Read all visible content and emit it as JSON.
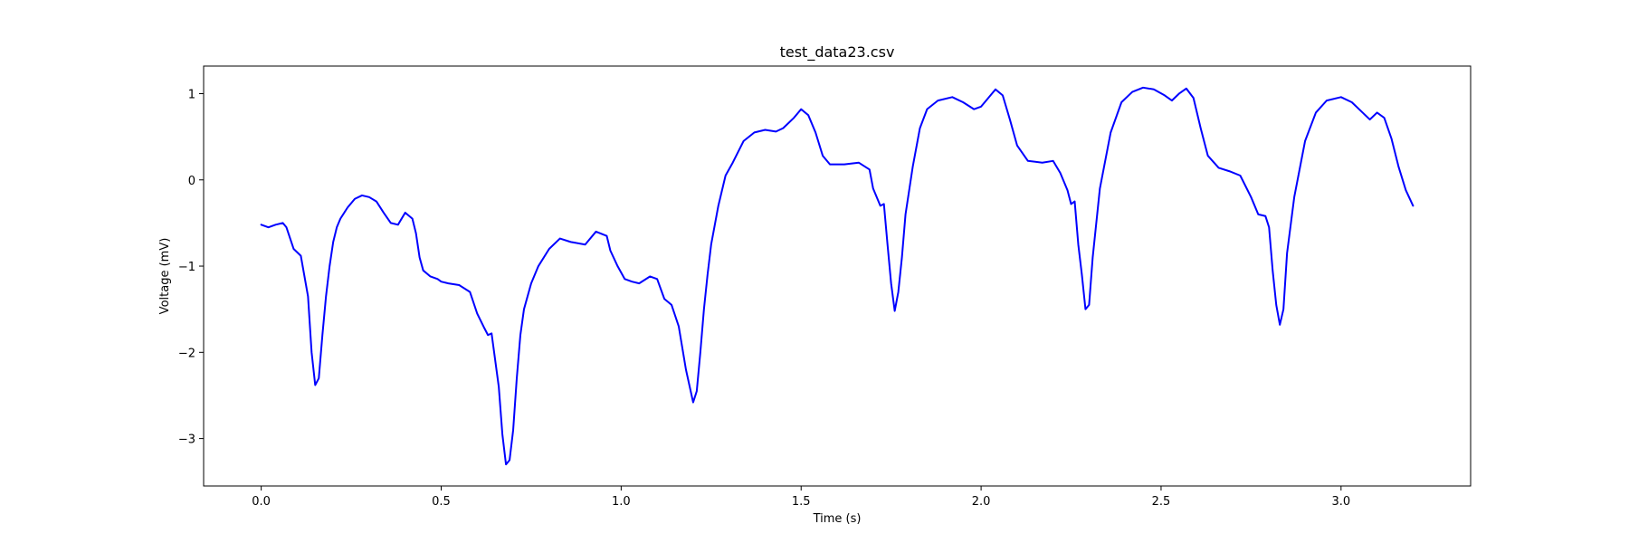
{
  "chart_data": {
    "type": "line",
    "title": "test_data23.csv",
    "xlabel": "Time (s)",
    "ylabel": "Voltage (mV)",
    "xlim": [
      -0.16,
      3.36
    ],
    "ylim": [
      -3.55,
      1.32
    ],
    "xticks": [
      0.0,
      0.5,
      1.0,
      1.5,
      2.0,
      2.5,
      3.0
    ],
    "xtick_labels": [
      "0.0",
      "0.5",
      "1.0",
      "1.5",
      "2.0",
      "2.5",
      "3.0"
    ],
    "yticks": [
      -3,
      -2,
      -1,
      0,
      1
    ],
    "ytick_labels": [
      "−3",
      "−2",
      "−1",
      "0",
      "1"
    ],
    "grid": false,
    "series": [
      {
        "color": "#0000ff",
        "x": [
          0.0,
          0.02,
          0.04,
          0.06,
          0.07,
          0.09,
          0.11,
          0.13,
          0.14,
          0.15,
          0.16,
          0.17,
          0.18,
          0.19,
          0.2,
          0.21,
          0.22,
          0.24,
          0.26,
          0.28,
          0.3,
          0.32,
          0.34,
          0.36,
          0.38,
          0.4,
          0.42,
          0.43,
          0.44,
          0.45,
          0.47,
          0.49,
          0.5,
          0.52,
          0.55,
          0.58,
          0.6,
          0.62,
          0.63,
          0.64,
          0.66,
          0.67,
          0.68,
          0.69,
          0.7,
          0.71,
          0.72,
          0.73,
          0.75,
          0.77,
          0.8,
          0.83,
          0.86,
          0.9,
          0.93,
          0.96,
          0.97,
          0.99,
          1.01,
          1.03,
          1.05,
          1.08,
          1.1,
          1.12,
          1.14,
          1.16,
          1.18,
          1.2,
          1.21,
          1.22,
          1.23,
          1.24,
          1.25,
          1.27,
          1.29,
          1.31,
          1.34,
          1.37,
          1.4,
          1.43,
          1.45,
          1.48,
          1.5,
          1.52,
          1.54,
          1.56,
          1.58,
          1.62,
          1.66,
          1.69,
          1.7,
          1.72,
          1.73,
          1.74,
          1.75,
          1.76,
          1.77,
          1.78,
          1.79,
          1.81,
          1.83,
          1.85,
          1.88,
          1.92,
          1.95,
          1.98,
          2.0,
          2.02,
          2.04,
          2.06,
          2.08,
          2.1,
          2.13,
          2.17,
          2.2,
          2.22,
          2.24,
          2.25,
          2.26,
          2.27,
          2.28,
          2.29,
          2.3,
          2.31,
          2.33,
          2.36,
          2.39,
          2.42,
          2.45,
          2.48,
          2.51,
          2.53,
          2.55,
          2.57,
          2.59,
          2.61,
          2.63,
          2.66,
          2.69,
          2.72,
          2.75,
          2.77,
          2.79,
          2.8,
          2.81,
          2.82,
          2.83,
          2.84,
          2.85,
          2.87,
          2.9,
          2.93,
          2.96,
          3.0,
          3.03,
          3.06,
          3.08,
          3.1,
          3.12,
          3.14,
          3.16,
          3.18,
          3.2
        ],
        "y": [
          -0.52,
          -0.55,
          -0.52,
          -0.5,
          -0.55,
          -0.8,
          -0.88,
          -1.35,
          -2.0,
          -2.38,
          -2.3,
          -1.8,
          -1.35,
          -1.0,
          -0.72,
          -0.55,
          -0.45,
          -0.32,
          -0.22,
          -0.18,
          -0.2,
          -0.25,
          -0.38,
          -0.5,
          -0.52,
          -0.38,
          -0.45,
          -0.62,
          -0.9,
          -1.05,
          -1.12,
          -1.15,
          -1.18,
          -1.2,
          -1.22,
          -1.3,
          -1.55,
          -1.72,
          -1.8,
          -1.78,
          -2.4,
          -2.95,
          -3.3,
          -3.25,
          -2.9,
          -2.3,
          -1.8,
          -1.5,
          -1.2,
          -1.0,
          -0.8,
          -0.68,
          -0.72,
          -0.75,
          -0.6,
          -0.65,
          -0.82,
          -1.0,
          -1.15,
          -1.18,
          -1.2,
          -1.12,
          -1.15,
          -1.38,
          -1.45,
          -1.7,
          -2.2,
          -2.58,
          -2.45,
          -2.0,
          -1.5,
          -1.1,
          -0.75,
          -0.3,
          0.05,
          0.2,
          0.45,
          0.55,
          0.58,
          0.56,
          0.6,
          0.72,
          0.82,
          0.75,
          0.55,
          0.28,
          0.18,
          0.18,
          0.2,
          0.12,
          -0.1,
          -0.3,
          -0.28,
          -0.75,
          -1.2,
          -1.52,
          -1.3,
          -0.9,
          -0.4,
          0.15,
          0.6,
          0.82,
          0.92,
          0.96,
          0.9,
          0.82,
          0.85,
          0.95,
          1.05,
          0.98,
          0.7,
          0.4,
          0.22,
          0.2,
          0.22,
          0.08,
          -0.12,
          -0.28,
          -0.25,
          -0.75,
          -1.1,
          -1.5,
          -1.45,
          -0.9,
          -0.1,
          0.55,
          0.9,
          1.02,
          1.07,
          1.05,
          0.98,
          0.92,
          1.0,
          1.06,
          0.95,
          0.6,
          0.28,
          0.14,
          0.1,
          0.05,
          -0.2,
          -0.4,
          -0.42,
          -0.55,
          -1.05,
          -1.45,
          -1.68,
          -1.5,
          -0.85,
          -0.2,
          0.45,
          0.78,
          0.92,
          0.96,
          0.9,
          0.78,
          0.7,
          0.78,
          0.72,
          0.48,
          0.15,
          -0.12,
          -0.3
        ]
      }
    ]
  }
}
